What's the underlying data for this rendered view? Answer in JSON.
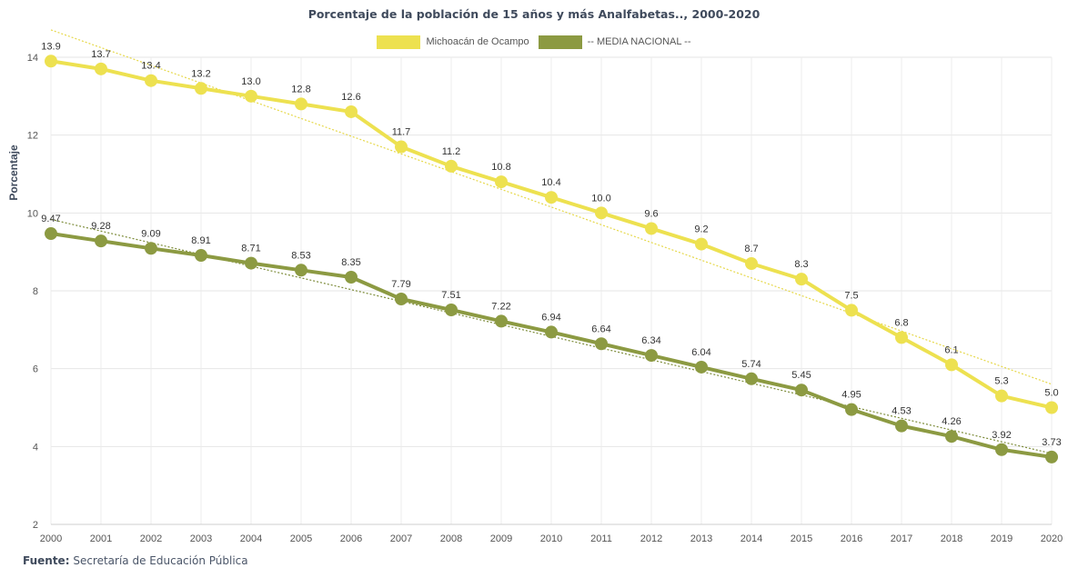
{
  "chart_data": {
    "type": "line",
    "title": "Porcentaje de la población de 15 años y más Analfabetas.., 2000-2020",
    "ylabel": "Porcentaje",
    "xlabel": "",
    "x": [
      "2000",
      "2001",
      "2002",
      "2003",
      "2004",
      "2005",
      "2006",
      "2007",
      "2008",
      "2009",
      "2010",
      "2011",
      "2012",
      "2013",
      "2014",
      "2015",
      "2016",
      "2017",
      "2018",
      "2019",
      "2020"
    ],
    "ylim": [
      2,
      14
    ],
    "yticks": [
      "2",
      "4",
      "6",
      "8",
      "10",
      "12",
      "14"
    ],
    "grid": true,
    "legend_position": "top",
    "series": [
      {
        "name": "Michoacán de Ocampo",
        "color": "#ede150",
        "trend_color": "#e6d84a",
        "values": [
          13.9,
          13.7,
          13.4,
          13.2,
          13.0,
          12.8,
          12.6,
          11.7,
          11.2,
          10.8,
          10.4,
          10.0,
          9.6,
          9.2,
          8.7,
          8.3,
          7.5,
          6.8,
          6.1,
          5.3,
          5.0
        ],
        "labels": [
          "13.9",
          "13.7",
          "13.4",
          "13.2",
          "13.0",
          "12.8",
          "12.6",
          "11.7",
          "11.2",
          "10.8",
          "10.4",
          "10.0",
          "9.6",
          "9.2",
          "8.7",
          "8.3",
          "7.5",
          "6.8",
          "6.1",
          "5.3",
          "5.0"
        ]
      },
      {
        "name": "-- MEDIA NACIONAL --",
        "color": "#8c9a42",
        "trend_color": "#7d8c3a",
        "values": [
          9.47,
          9.28,
          9.09,
          8.91,
          8.71,
          8.53,
          8.35,
          7.79,
          7.51,
          7.22,
          6.94,
          6.64,
          6.34,
          6.04,
          5.74,
          5.45,
          4.95,
          4.53,
          4.26,
          3.92,
          3.73
        ],
        "labels": [
          "9.47",
          "9.28",
          "9.09",
          "8.91",
          "8.71",
          "8.53",
          "8.35",
          "7.79",
          "7.51",
          "7.22",
          "6.94",
          "6.64",
          "6.34",
          "6.04",
          "5.74",
          "5.45",
          "4.95",
          "4.53",
          "4.26",
          "3.92",
          "3.73"
        ]
      }
    ]
  },
  "source": {
    "label": "Fuente:",
    "text": "Secretaría de Educación Pública"
  }
}
